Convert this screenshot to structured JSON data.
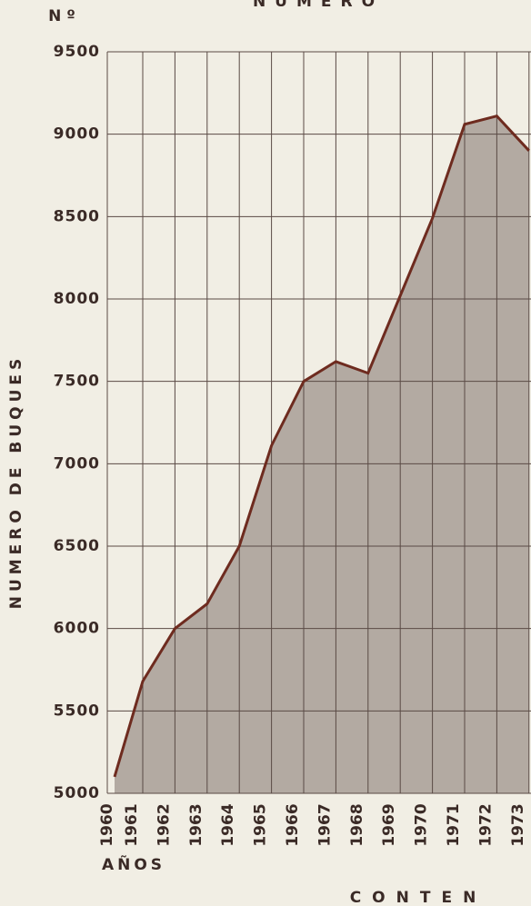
{
  "chart_data": {
    "type": "area",
    "title": "NUMERO",
    "y_unit_label": "N º",
    "ylabel": "NUMERO DE BUQUES",
    "xlabel": "AÑOS",
    "footer_text": "CONTEN",
    "categories": [
      "1960",
      "1961",
      "1962",
      "1963",
      "1964",
      "1965",
      "1966",
      "1967",
      "1968",
      "1969",
      "1970",
      "1971",
      "1972",
      "1973"
    ],
    "values": [
      5100,
      5680,
      6000,
      6150,
      6500,
      7110,
      7500,
      7620,
      7550,
      8020,
      8490,
      9060,
      9110,
      8900
    ],
    "color": "#6e2b1f",
    "fill_color": "#b3aaa2",
    "ylim": [
      5000,
      9500
    ],
    "yticks": [
      5000,
      5500,
      6000,
      6500,
      7000,
      7500,
      8000,
      8500,
      9000,
      9500
    ],
    "grid": true
  }
}
